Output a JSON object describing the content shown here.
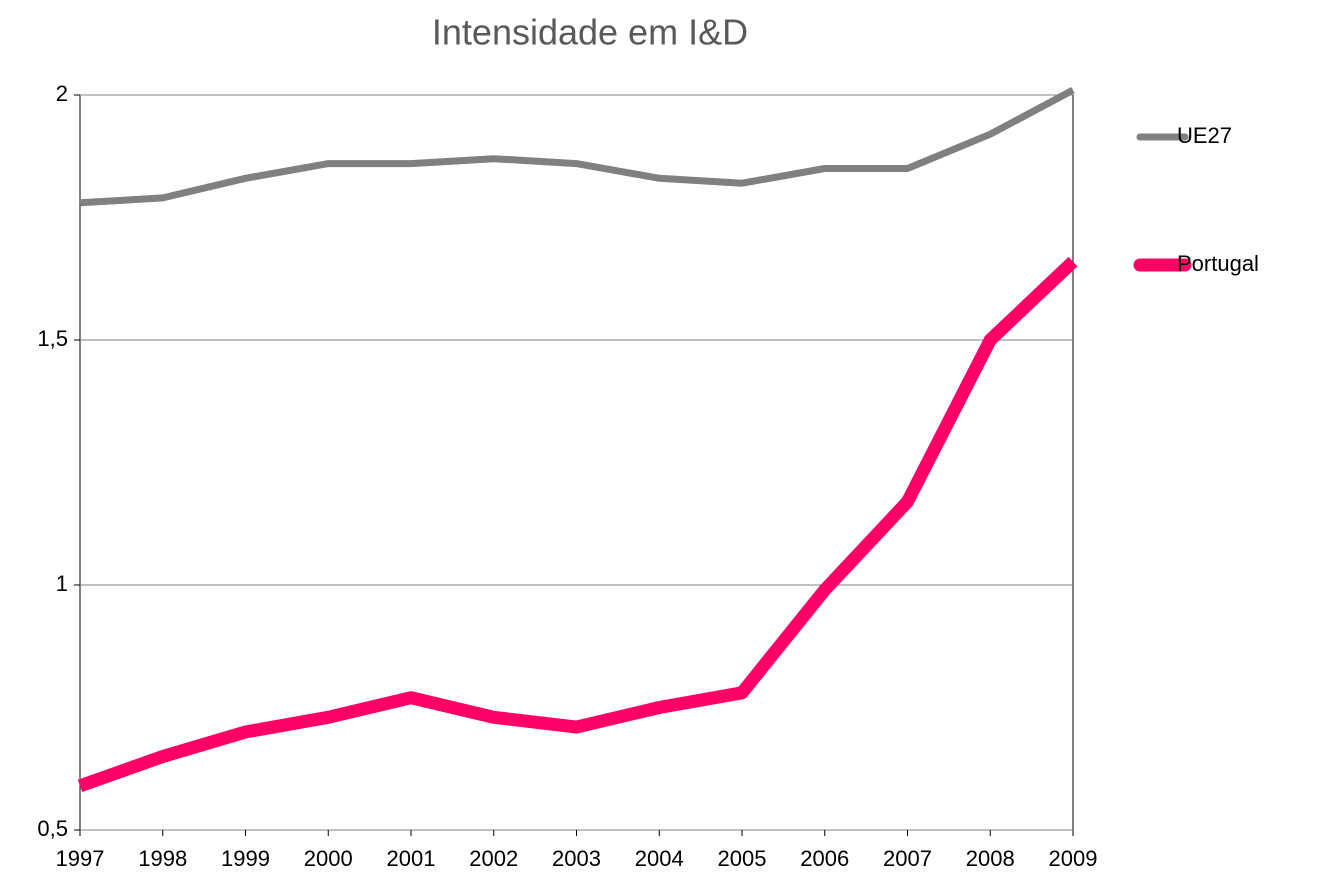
{
  "chart_data": {
    "type": "line",
    "title": "Intensidade em I&D",
    "categories": [
      "1997",
      "1998",
      "1999",
      "2000",
      "2001",
      "2002",
      "2003",
      "2004",
      "2005",
      "2006",
      "2007",
      "2008",
      "2009"
    ],
    "series": [
      {
        "name": "UE27",
        "color": "#808080",
        "values": [
          1.78,
          1.79,
          1.83,
          1.86,
          1.86,
          1.87,
          1.86,
          1.83,
          1.82,
          1.85,
          1.85,
          1.92,
          2.01
        ]
      },
      {
        "name": "Portugal",
        "color": "#ff0066",
        "values": [
          0.59,
          0.65,
          0.7,
          0.73,
          0.77,
          0.73,
          0.71,
          0.75,
          0.78,
          0.99,
          1.17,
          1.5,
          1.66
        ]
      }
    ],
    "ylim": [
      0.5,
      2
    ],
    "yticks": [
      {
        "value": 0.5,
        "label": "0,5"
      },
      1,
      {
        "value": 1.5,
        "label": "1,5"
      },
      2
    ],
    "grid": true,
    "legend": "right"
  }
}
